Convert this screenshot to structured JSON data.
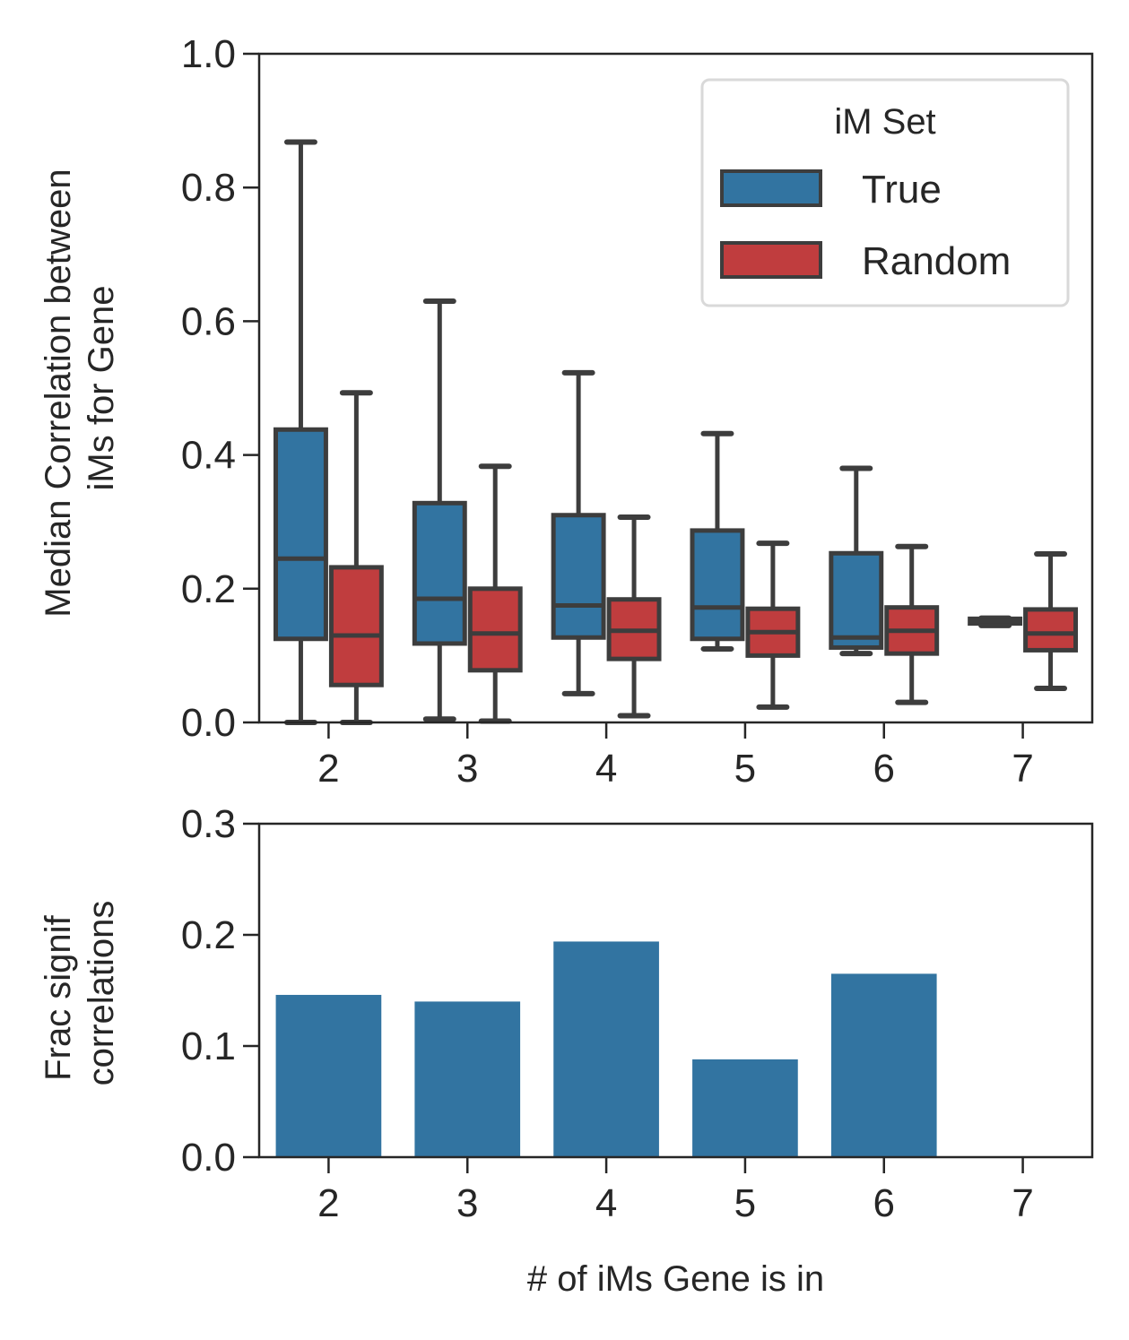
{
  "chart_data": [
    {
      "type": "box",
      "ylabel": [
        "Median Correlation between",
        "iMs for Gene"
      ],
      "xlabel": "",
      "ylim": [
        0.0,
        1.0
      ],
      "yticks": [
        "0.0",
        "0.2",
        "0.4",
        "0.6",
        "0.8",
        "1.0"
      ],
      "categories": [
        "2",
        "3",
        "4",
        "5",
        "6",
        "7"
      ],
      "grid": false,
      "legend": {
        "title": "iM Set",
        "placement": "top-right",
        "entries": [
          "True",
          "Random"
        ]
      },
      "series": [
        {
          "name": "True",
          "color": "#3274a1",
          "boxes": [
            {
              "whislo": 0.0,
              "q1": 0.125,
              "med": 0.245,
              "q3": 0.438,
              "whishi": 0.868
            },
            {
              "whislo": 0.005,
              "q1": 0.118,
              "med": 0.185,
              "q3": 0.328,
              "whishi": 0.63
            },
            {
              "whislo": 0.043,
              "q1": 0.127,
              "med": 0.175,
              "q3": 0.31,
              "whishi": 0.523
            },
            {
              "whislo": 0.11,
              "q1": 0.125,
              "med": 0.172,
              "q3": 0.287,
              "whishi": 0.432
            },
            {
              "whislo": 0.103,
              "q1": 0.112,
              "med": 0.127,
              "q3": 0.253,
              "whishi": 0.38
            },
            {
              "whislo": 0.145,
              "q1": 0.148,
              "med": 0.152,
              "q3": 0.155,
              "whishi": 0.156
            }
          ]
        },
        {
          "name": "Random",
          "color": "#c03d3e",
          "boxes": [
            {
              "whislo": 0.0,
              "q1": 0.056,
              "med": 0.13,
              "q3": 0.232,
              "whishi": 0.493
            },
            {
              "whislo": 0.002,
              "q1": 0.078,
              "med": 0.133,
              "q3": 0.2,
              "whishi": 0.383
            },
            {
              "whislo": 0.01,
              "q1": 0.095,
              "med": 0.137,
              "q3": 0.184,
              "whishi": 0.307
            },
            {
              "whislo": 0.023,
              "q1": 0.1,
              "med": 0.135,
              "q3": 0.17,
              "whishi": 0.268
            },
            {
              "whislo": 0.03,
              "q1": 0.103,
              "med": 0.137,
              "q3": 0.172,
              "whishi": 0.263
            },
            {
              "whislo": 0.051,
              "q1": 0.108,
              "med": 0.133,
              "q3": 0.169,
              "whishi": 0.252
            }
          ]
        }
      ]
    },
    {
      "type": "bar",
      "ylabel": [
        "Frac signif",
        "correlations"
      ],
      "xlabel": "# of iMs Gene is in",
      "ylim": [
        0.0,
        0.3
      ],
      "yticks": [
        "0.0",
        "0.1",
        "0.2",
        "0.3"
      ],
      "categories": [
        "2",
        "3",
        "4",
        "5",
        "6",
        "7"
      ],
      "values": [
        0.146,
        0.14,
        0.194,
        0.088,
        0.165,
        0.0
      ],
      "color": "#3274a1",
      "grid": false
    }
  ]
}
